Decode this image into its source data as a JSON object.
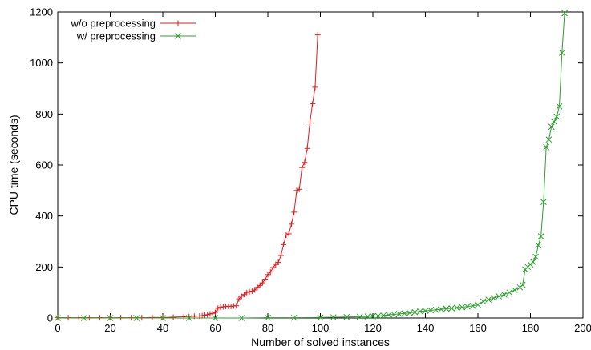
{
  "chart_data": {
    "type": "line",
    "xlabel": "Number of solved instances",
    "ylabel": "CPU time (seconds)",
    "xlim": [
      0,
      200
    ],
    "ylim": [
      0,
      1200
    ],
    "xticks": [
      "0",
      "20",
      "40",
      "60",
      "80",
      "100",
      "120",
      "140",
      "160",
      "180",
      "200"
    ],
    "yticks": [
      "0",
      "200",
      "400",
      "600",
      "800",
      "1000",
      "1200"
    ],
    "grid": false,
    "legend_position": "top-left",
    "series": [
      {
        "name": "w/o preprocessing",
        "color": "#e41a1c",
        "marker": "plus",
        "x": [
          0,
          4,
          8,
          12,
          16,
          20,
          24,
          28,
          32,
          36,
          40,
          44,
          48,
          50,
          52,
          54,
          55,
          56,
          57,
          58,
          59,
          60,
          61,
          62,
          63,
          64,
          65,
          66,
          67,
          68,
          69,
          70,
          71,
          72,
          73,
          74,
          75,
          76,
          77,
          78,
          79,
          80,
          81,
          82,
          83,
          84,
          85,
          86,
          87,
          88,
          89,
          90,
          91,
          92,
          93,
          94,
          95,
          96,
          97,
          98,
          99
        ],
        "y": [
          1,
          1,
          1,
          1,
          1,
          1,
          1,
          1,
          1,
          2,
          2,
          3,
          5,
          6,
          7,
          8,
          9,
          11,
          13,
          16,
          18,
          22,
          38,
          42,
          44,
          45,
          46,
          46,
          47,
          48,
          75,
          85,
          92,
          100,
          103,
          105,
          110,
          120,
          128,
          138,
          152,
          170,
          180,
          198,
          210,
          218,
          245,
          288,
          325,
          330,
          368,
          415,
          500,
          505,
          590,
          610,
          665,
          765,
          840,
          905,
          1110
        ]
      },
      {
        "name": "w/ preprocessing",
        "color": "#2ca02c",
        "marker": "cross",
        "x": [
          0,
          10,
          20,
          30,
          40,
          50,
          60,
          70,
          80,
          90,
          100,
          105,
          110,
          115,
          118,
          120,
          122,
          124,
          126,
          128,
          130,
          132,
          134,
          136,
          138,
          140,
          142,
          144,
          146,
          148,
          150,
          152,
          154,
          156,
          158,
          160,
          162,
          164,
          166,
          168,
          170,
          172,
          174,
          176,
          177,
          178,
          179,
          180,
          181,
          182,
          183,
          184,
          185,
          186,
          187,
          188,
          189,
          190,
          191,
          192,
          193
        ],
        "y": [
          0,
          0,
          0,
          0,
          0,
          0,
          0,
          0,
          1,
          1,
          2,
          3,
          4,
          5,
          6,
          7,
          8,
          10,
          12,
          14,
          16,
          18,
          20,
          23,
          26,
          28,
          30,
          32,
          34,
          36,
          38,
          40,
          42,
          45,
          48,
          52,
          65,
          72,
          78,
          85,
          92,
          100,
          110,
          120,
          130,
          190,
          200,
          210,
          220,
          240,
          285,
          320,
          455,
          670,
          700,
          750,
          770,
          790,
          830,
          1040,
          1195
        ]
      }
    ]
  }
}
